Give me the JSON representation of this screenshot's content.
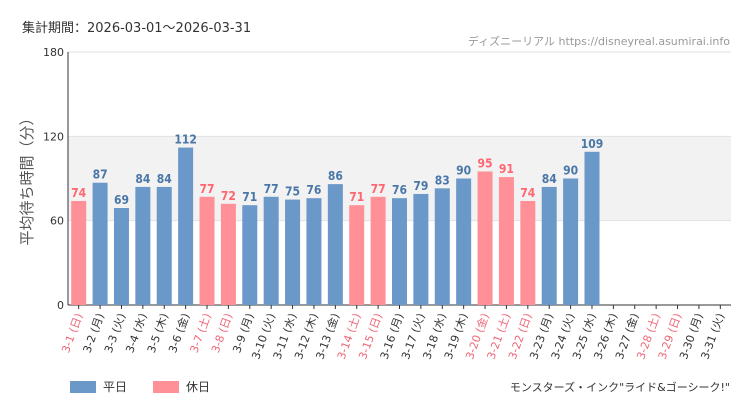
{
  "header": {
    "period_label": "集計期間：2026-03-01〜2026-03-31",
    "source_label": "ディズニーリアル https://disneyreal.asumirai.info"
  },
  "footer": {
    "attraction_name": "モンスターズ・インク\"ライド&ゴーシーク!\""
  },
  "colors": {
    "weekday": "#6a98c8",
    "holiday": "#ff9097",
    "holiday_label": "#ee6677",
    "weekday_label": "#333333",
    "band": "#f2f2f2",
    "value_weekday": "#4a77a8",
    "value_holiday": "#ff6670"
  },
  "chart_data": {
    "type": "bar",
    "ylabel": "平均待ち時間（分）",
    "ylim": [
      0,
      180
    ],
    "yticks": [
      0,
      60,
      120,
      180
    ],
    "band": [
      60,
      120
    ],
    "series": [
      {
        "name": "平日",
        "color": "#6a98c8"
      },
      {
        "name": "休日",
        "color": "#ff9097"
      }
    ],
    "categories": [
      "3-1 (日)",
      "3-2 (月)",
      "3-3 (火)",
      "3-4 (水)",
      "3-5 (木)",
      "3-6 (金)",
      "3-7 (土)",
      "3-8 (日)",
      "3-9 (月)",
      "3-10 (火)",
      "3-11 (水)",
      "3-12 (木)",
      "3-13 (金)",
      "3-14 (土)",
      "3-15 (日)",
      "3-16 (月)",
      "3-17 (火)",
      "3-18 (水)",
      "3-19 (木)",
      "3-20 (金)",
      "3-21 (土)",
      "3-22 (日)",
      "3-23 (月)",
      "3-24 (火)",
      "3-25 (水)",
      "3-26 (木)",
      "3-27 (金)",
      "3-28 (土)",
      "3-29 (日)",
      "3-30 (月)",
      "3-31 (火)"
    ],
    "holiday_flags": [
      true,
      false,
      false,
      false,
      false,
      false,
      true,
      true,
      false,
      false,
      false,
      false,
      false,
      true,
      true,
      false,
      false,
      false,
      false,
      true,
      true,
      true,
      false,
      false,
      false,
      false,
      false,
      true,
      true,
      false,
      false
    ],
    "values": [
      74,
      87,
      69,
      84,
      84,
      112,
      77,
      72,
      71,
      77,
      75,
      76,
      86,
      71,
      77,
      76,
      79,
      83,
      90,
      95,
      91,
      74,
      84,
      90,
      109,
      null,
      null,
      null,
      null,
      null,
      null
    ]
  }
}
